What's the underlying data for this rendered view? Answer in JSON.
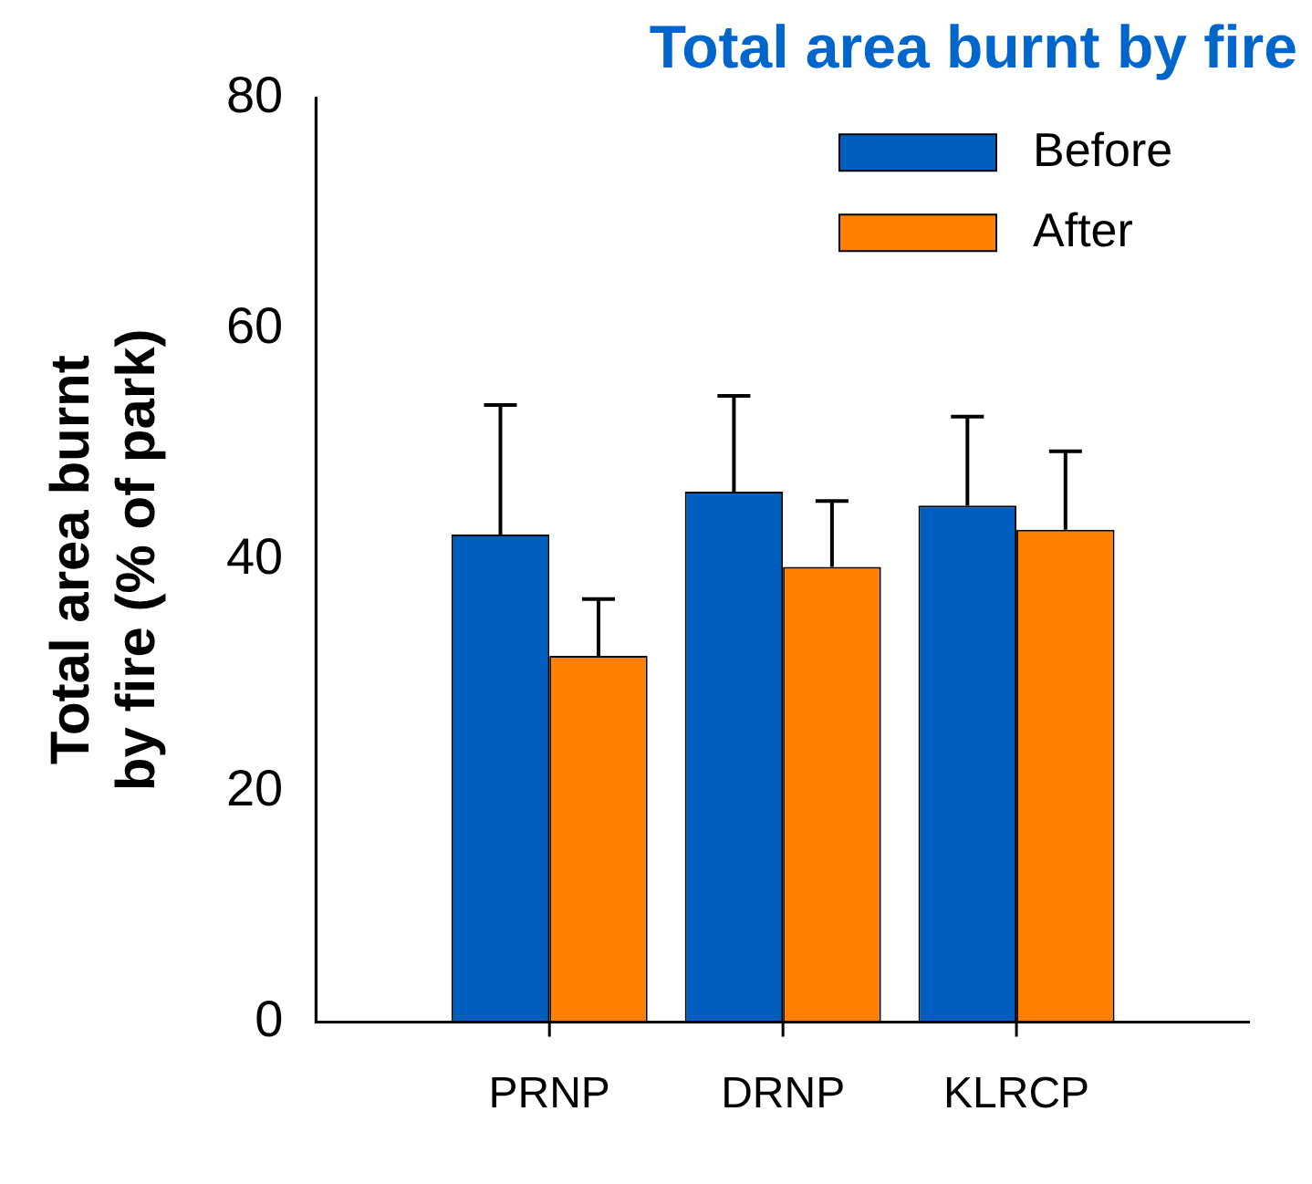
{
  "chart_data": {
    "type": "bar",
    "title": "Total area burnt by fire",
    "ylabel": "Total area burnt\nby fire (% of park)",
    "categories": [
      null,
      "PRNP",
      "DRNP",
      "KLRCP",
      null
    ],
    "series": [
      {
        "name": "Before",
        "color": "#005ebf",
        "values": [
          null,
          42.2,
          45.9,
          44.7,
          null
        ],
        "errors": [
          null,
          [
            42.2,
            53.4
          ],
          [
            45.9,
            54.2
          ],
          [
            44.7,
            52.4
          ],
          null
        ]
      },
      {
        "name": "After",
        "color": "#ff8000",
        "values": [
          null,
          31.7,
          39.4,
          42.6,
          null
        ],
        "errors": [
          null,
          [
            31.7,
            36.6
          ],
          [
            39.4,
            45.1
          ],
          [
            42.6,
            49.4
          ],
          null
        ]
      }
    ],
    "ylim": [
      0,
      80
    ],
    "yticks": [
      0,
      20,
      40,
      60,
      80
    ],
    "grid": false,
    "legend": "top right"
  }
}
